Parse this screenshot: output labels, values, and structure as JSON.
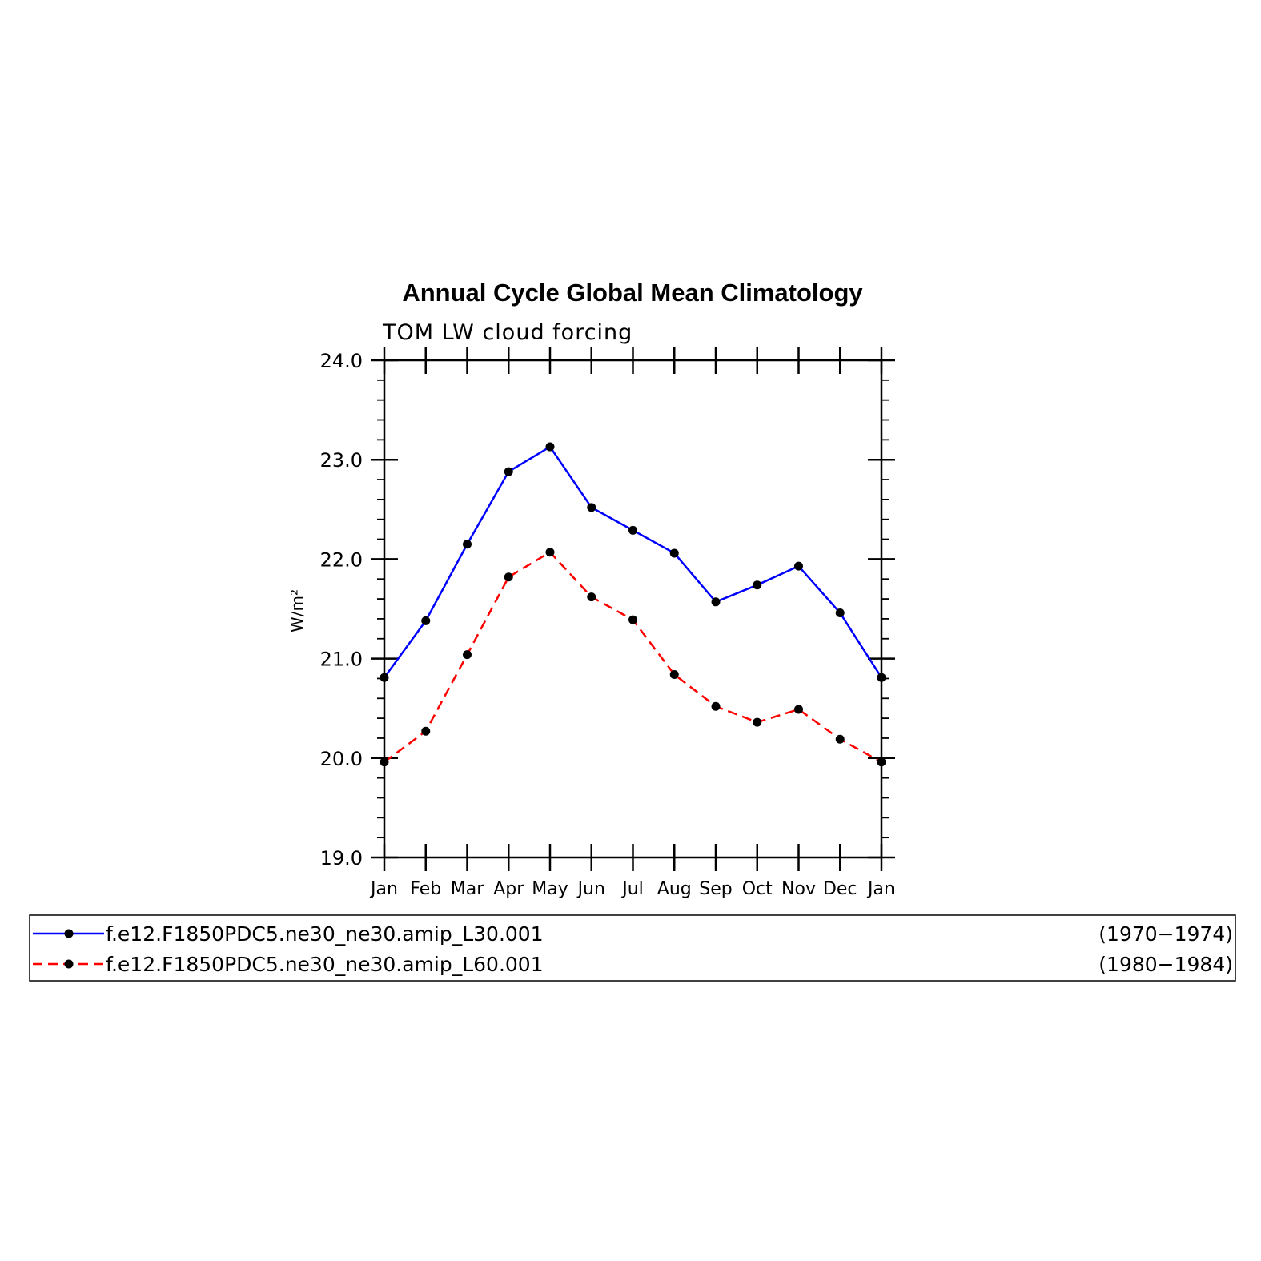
{
  "chart_data": {
    "type": "line",
    "title": "Annual Cycle Global Mean Climatology",
    "subtitle": "TOM LW cloud forcing",
    "ylabel": "W/m²",
    "xlabel": "",
    "categories": [
      "Jan",
      "Feb",
      "Mar",
      "Apr",
      "May",
      "Jun",
      "Jul",
      "Aug",
      "Sep",
      "Oct",
      "Nov",
      "Dec",
      "Jan"
    ],
    "ylim": [
      19.0,
      24.0
    ],
    "yticks": [
      "19.0",
      "20.0",
      "21.0",
      "22.0",
      "23.0",
      "24.0"
    ],
    "grid": false,
    "legend_position": "bottom",
    "series": [
      {
        "name": "f.e12.F1850PDC5.ne30_ne30.amip_L30.001",
        "period": "(1970−1974)",
        "color": "#0000ff",
        "dash": "solid",
        "values": [
          20.81,
          21.38,
          22.15,
          22.88,
          23.13,
          22.52,
          22.29,
          22.06,
          21.57,
          21.74,
          21.93,
          21.46,
          20.81
        ]
      },
      {
        "name": "f.e12.F1850PDC5.ne30_ne30.amip_L60.001",
        "period": "(1980−1984)",
        "color": "#ff0000",
        "dash": "dashed",
        "values": [
          19.96,
          20.27,
          21.04,
          21.82,
          22.07,
          21.62,
          21.39,
          20.84,
          20.52,
          20.36,
          20.49,
          20.19,
          19.96
        ]
      }
    ]
  }
}
